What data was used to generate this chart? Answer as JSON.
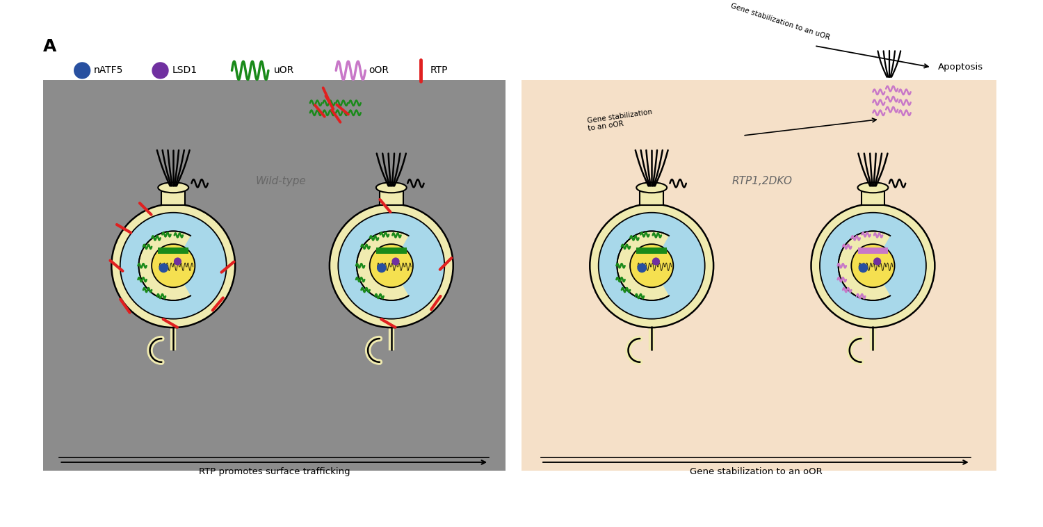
{
  "fig_width": 15.0,
  "fig_height": 7.58,
  "dpi": 100,
  "bg_white": "#ffffff",
  "bg_gray": "#8c8c8c",
  "bg_peach": "#f5e0c8",
  "cell_outer": "#f0ebb0",
  "cell_cytoplasm": "#a8d8ea",
  "cell_nucleus_inner": "#f5e050",
  "uOR_color": "#1a8a1a",
  "oOR_color": "#c878c8",
  "RTP_color": "#e02020",
  "nATF5_color": "#2850a0",
  "LSD1_color": "#7030a0",
  "outline_color": "#000000",
  "label_A": "A",
  "legend_nATF5": "nATF5",
  "legend_LSD1": "LSD1",
  "legend_uOR": "uOR",
  "legend_oOR": "oOR",
  "legend_RTP": "RTP",
  "label_wildtype": "Wild-type",
  "label_RTP1_2DKO": "RTP1,2DKO",
  "label_bottom_left": "RTP promotes surface trafficking",
  "label_bottom_right": "Gene stabilization to an oOR",
  "label_apoptosis": "Apoptosis",
  "label_gene_stab_uOR": "Gene stabilization to an uOR",
  "xlim": [
    0,
    150
  ],
  "ylim": [
    0,
    75.8
  ]
}
